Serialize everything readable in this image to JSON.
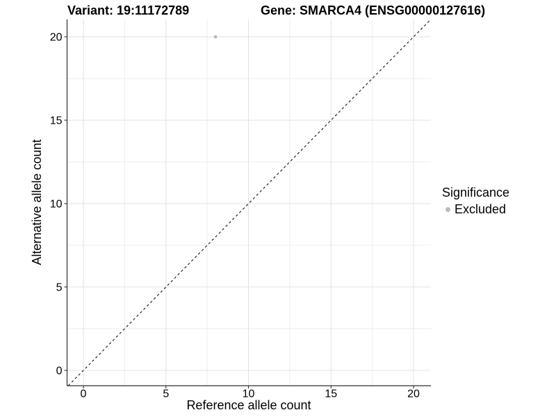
{
  "chart_data": {
    "type": "scatter",
    "titles": {
      "left": "Variant: 19:11172789",
      "right": "Gene: SMARCA4 (ENSG00000127616)"
    },
    "xlabel": "Reference allele count",
    "ylabel": "Alternative allele count",
    "x_domain": [
      -0.99,
      21.05
    ],
    "y_domain": [
      -0.92,
      21.04
    ],
    "x_ticks": [
      0,
      5,
      10,
      15,
      20
    ],
    "y_ticks": [
      0,
      5,
      10,
      15,
      20
    ],
    "x_minor_ticks": [
      2.5,
      7.5,
      12.5,
      17.5
    ],
    "y_minor_ticks": [
      2.5,
      7.5,
      12.5,
      17.5
    ],
    "grid": "major+minor",
    "identity_line": {
      "slope": 1,
      "intercept": 0,
      "style": "dashed",
      "color": "#111111"
    },
    "series": [
      {
        "name": "Excluded",
        "color": "#bababa",
        "points": [
          {
            "x": 8,
            "y": 20
          }
        ]
      }
    ],
    "legend": {
      "title": "Significance",
      "position": "right",
      "items": [
        {
          "label": "Excluded",
          "color": "#bababa"
        }
      ]
    },
    "style": {
      "grid_major_color": "#e2e2e2",
      "grid_minor_color": "#eeeeee",
      "axis_color": "#2f2f2f",
      "text_color": "#000000",
      "background": "#ffffff"
    }
  }
}
